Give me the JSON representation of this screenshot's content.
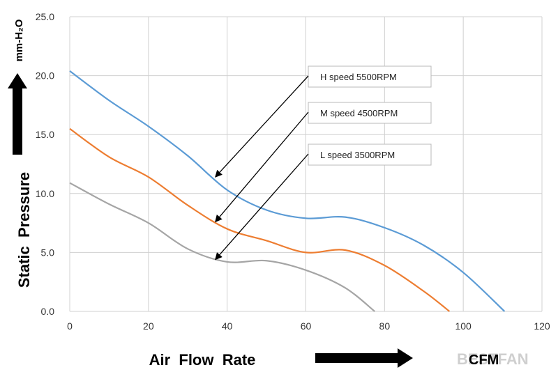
{
  "chart_data": {
    "type": "line",
    "xlabel": "Air  Flow  Rate",
    "xunit": "CFM",
    "ylabel": "Static  Pressure",
    "yunit": "mm-H₂O",
    "xlim": [
      0,
      120
    ],
    "ylim": [
      0,
      25
    ],
    "xticks": [
      "0",
      "20",
      "40",
      "60",
      "80",
      "100",
      "120"
    ],
    "yticks": [
      "0.0",
      "5.0",
      "10.0",
      "15.0",
      "20.0",
      "25.0"
    ],
    "grid": true,
    "series": [
      {
        "name": "H speed  5500RPM",
        "color": "#5b9bd5",
        "x": [
          0,
          10,
          20,
          30,
          40,
          50,
          60,
          70,
          80,
          90,
          100,
          110.5
        ],
        "y": [
          20.4,
          17.9,
          15.7,
          13.2,
          10.3,
          8.6,
          7.9,
          8.0,
          7.1,
          5.6,
          3.3,
          0
        ]
      },
      {
        "name": "M speed  4500RPM",
        "color": "#ed7d31",
        "x": [
          0,
          10,
          20,
          30,
          40,
          50,
          60,
          70,
          80,
          90,
          96.5
        ],
        "y": [
          15.5,
          13.1,
          11.4,
          9.0,
          7.0,
          6.0,
          5.0,
          5.2,
          3.9,
          1.7,
          0
        ]
      },
      {
        "name": "L speed  3500RPM",
        "color": "#a5a5a5",
        "x": [
          0,
          10,
          20,
          30,
          40,
          50,
          60,
          70,
          77.5
        ],
        "y": [
          10.9,
          9.1,
          7.5,
          5.3,
          4.2,
          4.3,
          3.5,
          2.0,
          0
        ]
      }
    ],
    "annotations": [
      {
        "text": "H speed  5500RPM",
        "arrow_to": [
          37,
          11.4
        ]
      },
      {
        "text": "M speed  4500RPM",
        "arrow_to": [
          37,
          7.6
        ]
      },
      {
        "text": "L speed  3500RPM",
        "arrow_to": [
          37,
          4.4
        ]
      }
    ],
    "watermark": "BESTFAN"
  }
}
